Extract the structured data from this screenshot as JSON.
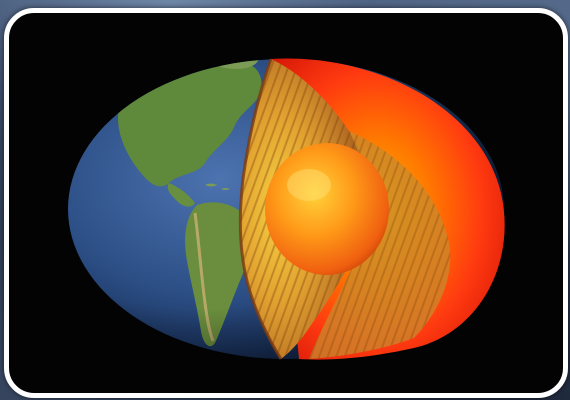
{
  "scene": {
    "subject": "earth-cutaway-globe",
    "colors": {
      "frame_border": "#ffffff",
      "frame_background": "#030303",
      "ocean": "#2c4f86",
      "land": "#5f8a3c",
      "mantle_outer": "#ff2a10",
      "crust_cut": "#c78a2a",
      "inner_core": "#ff7a10"
    }
  }
}
